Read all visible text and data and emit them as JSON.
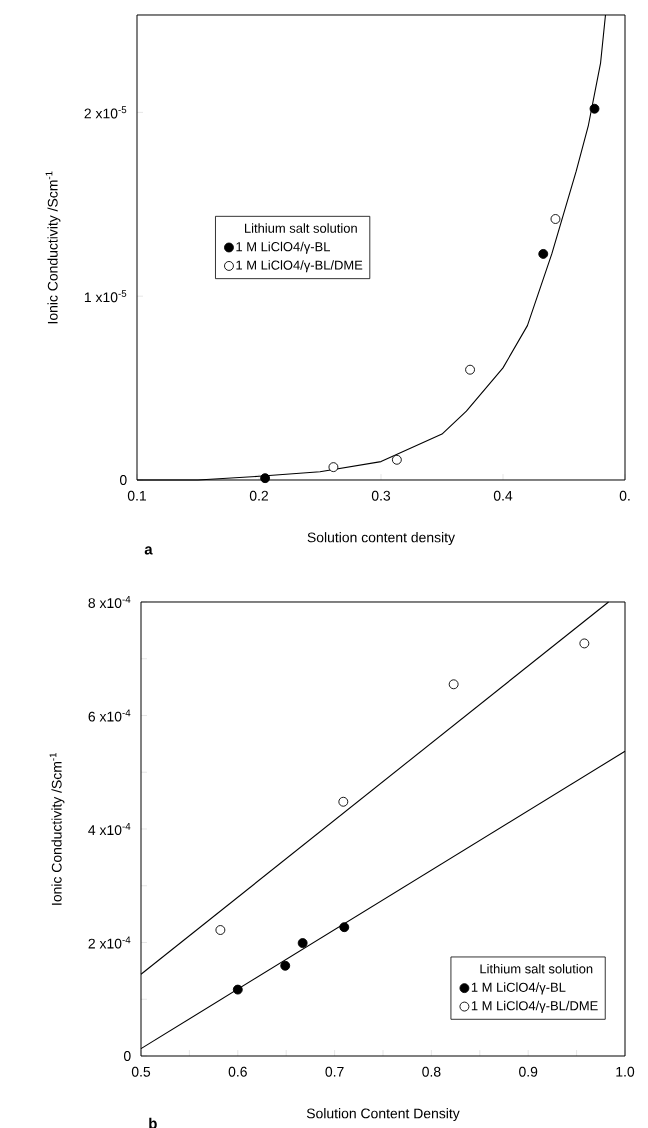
{
  "chart_data": [
    {
      "type": "scatter",
      "xlabel": "Solution content density",
      "ylabel": "Ionic Conductivity /Scm$^{-1}$",
      "legend_title": "Lithium salt solution",
      "legend": "left",
      "annotations": [
        "a"
      ],
      "xlim": [
        0.1,
        0.5
      ],
      "ylim": [
        0,
        2.53e-05
      ],
      "xticks": [
        0.1,
        0.2,
        0.3,
        0.4,
        {
          "value": 0.5,
          "label": "0."
        }
      ],
      "yticks": [
        0,
        {
          "value": 1e-05,
          "label": "1 x10$^{-5}$"
        },
        {
          "value": 2e-05,
          "label": "2 x10$^{-5}$"
        }
      ],
      "series": [
        {
          "type": "line",
          "marker": "none",
          "color": "#000000",
          "x": [
            0.1,
            0.15,
            0.2,
            0.25,
            0.3,
            0.35,
            0.37,
            0.4,
            0.42,
            0.44,
            0.46,
            0.47,
            0.48,
            0.484
          ],
          "values": [
            0,
            0,
            2e-07,
            4.5e-07,
            1e-06,
            2.5e-06,
            3.75e-06,
            6.1e-06,
            8.4e-06,
            1.23e-05,
            1.68e-05,
            1.93e-05,
            2.27e-05,
            2.53e-05
          ]
        },
        {
          "marker": "circle",
          "name": "1 M LiClO4/γ-BL",
          "color": "#000000",
          "x": [
            0.205,
            0.433,
            0.475
          ],
          "values": [
            1e-07,
            1.23e-05,
            2.02e-05
          ]
        },
        {
          "marker": "circle",
          "name": "1 M LiClO4/γ-BL/DME",
          "color": "#ffffff",
          "x": [
            0.261,
            0.313,
            0.373,
            0.443
          ],
          "values": [
            7e-07,
            1.1e-06,
            6e-06,
            1.42e-05
          ]
        }
      ]
    },
    {
      "type": "scatter",
      "xlabel": "Solution Content Density",
      "ylabel": "Ionic Conductivity /Scm$^{-1}$",
      "legend_title": "Lithium salt solution",
      "legend": "bottom right",
      "annotations": [
        "b"
      ],
      "xlim": [
        0.5,
        1.0
      ],
      "ylim": [
        0,
        0.0008
      ],
      "xticks": [
        0.5,
        {
          "value": 0.55,
          "label": null
        },
        0.6,
        {
          "value": 0.65,
          "label": null
        },
        0.7,
        {
          "value": 0.75,
          "label": null
        },
        0.8,
        {
          "value": 0.85,
          "label": null
        },
        0.9,
        {
          "value": 0.95,
          "label": null
        },
        {
          "value": 1.0,
          "label": "1.0"
        }
      ],
      "yticks": [
        0,
        {
          "value": 0.0001,
          "label": null
        },
        {
          "value": 0.0002,
          "label": "2 x10$^{-4}$"
        },
        {
          "value": 0.0003,
          "label": null
        },
        {
          "value": 0.0004,
          "label": "4 x10$^{-4}$"
        },
        {
          "value": 0.0005,
          "label": null
        },
        {
          "value": 0.0006,
          "label": "6 x10$^{-4}$"
        },
        {
          "value": 0.0007,
          "label": null
        },
        {
          "value": 0.0008,
          "label": "8 x10$^{-4}$"
        }
      ],
      "series": [
        {
          "type": "line",
          "marker": "none",
          "color": "#000000",
          "x": [
            0.5,
            0.983
          ],
          "values": [
            0.000144,
            0.0008
          ]
        },
        {
          "type": "line",
          "marker": "none",
          "color": "#000000",
          "x": [
            0.5,
            1.0
          ],
          "values": [
            1.3e-05,
            0.000537
          ]
        },
        {
          "marker": "circle",
          "name": "1 M LiClO4/γ-BL",
          "color": "#000000",
          "x": [
            0.6,
            0.649,
            0.667,
            0.71
          ],
          "values": [
            0.000117,
            0.000159,
            0.000199,
            0.000227
          ]
        },
        {
          "marker": "circle",
          "name": "1 M LiClO4/γ-BL/DME",
          "color": "#ffffff",
          "x": [
            0.582,
            0.709,
            0.823,
            0.958
          ],
          "values": [
            0.000222,
            0.000448,
            0.000655,
            0.000727
          ]
        }
      ]
    }
  ]
}
